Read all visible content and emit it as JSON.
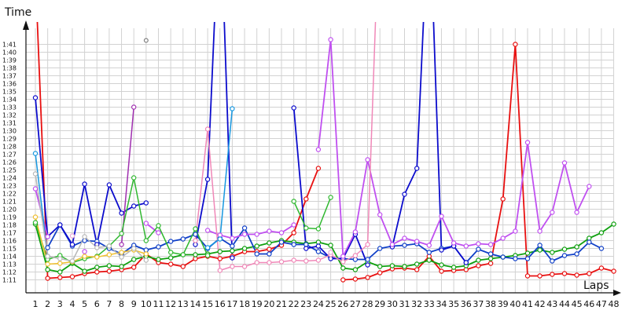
{
  "chart_data": {
    "type": "line",
    "xlabel": "Laps",
    "ylabel": "Time",
    "grid": true,
    "x": [
      1,
      2,
      3,
      4,
      5,
      6,
      7,
      8,
      9,
      10,
      11,
      12,
      13,
      14,
      15,
      16,
      17,
      18,
      19,
      20,
      21,
      22,
      23,
      24,
      25,
      26,
      27,
      28,
      29,
      30,
      31,
      32,
      33,
      34,
      35,
      36,
      37,
      38,
      39,
      40,
      41,
      42,
      43,
      44,
      45,
      46,
      47,
      48
    ],
    "xlim": [
      1,
      48
    ],
    "ylim": [
      71,
      101
    ],
    "yticks": [
      71,
      72,
      73,
      74,
      75,
      76,
      77,
      78,
      79,
      80,
      81,
      82,
      83,
      84,
      85,
      86,
      87,
      88,
      89,
      90,
      91,
      92,
      93,
      94,
      95,
      96,
      97,
      98,
      99,
      100,
      101
    ],
    "ytick_labels": [
      "1:11",
      "1:12",
      "1:13",
      "1:14",
      "1:15",
      "1:16",
      "1:17",
      "1:18",
      "1:19",
      "1:20",
      "1:21",
      "1:22",
      "1:23",
      "1:24",
      "1:25",
      "1:26",
      "1:27",
      "1:28",
      "1:29",
      "1:30",
      "1:31",
      "1:32",
      "1:33",
      "1:34",
      "1:35",
      "1:36",
      "1:37",
      "1:38",
      "1:39",
      "1:40",
      "1:41"
    ],
    "series": [
      {
        "color": "#e81010",
        "width": 1.8,
        "values": [
          110,
          71.2,
          71.3,
          71.4,
          71.8,
          72.0,
          72.1,
          72.3,
          72.6,
          74.3,
          73.2,
          73.0,
          72.7,
          73.7,
          74.0,
          73.7,
          74.0,
          74.6,
          74.6,
          74.9,
          75.4,
          77.0,
          81.3,
          85.2,
          null,
          71.0,
          71.1,
          71.3,
          71.9,
          72.4,
          72.5,
          72.3,
          74.0,
          72.1,
          72.2,
          72.3,
          72.8,
          73.1,
          81.3,
          101.0,
          71.5,
          71.5,
          71.7,
          71.8,
          71.6,
          71.8,
          72.5,
          72.1
        ]
      },
      {
        "color": "#10a010",
        "width": 1.8,
        "values": [
          78.1,
          72.3,
          72.0,
          73.1,
          72.1,
          72.6,
          72.8,
          72.7,
          73.6,
          74.0,
          73.6,
          73.8,
          74.2,
          74.2,
          74.3,
          74.6,
          74.7,
          75.0,
          75.3,
          75.7,
          76.0,
          75.8,
          75.6,
          75.8,
          75.4,
          72.5,
          72.3,
          73.3,
          72.7,
          72.8,
          72.7,
          73.0,
          73.5,
          72.9,
          72.6,
          72.8,
          73.5,
          73.7,
          73.9,
          74.1,
          74.4,
          74.8,
          74.5,
          74.9,
          75.2,
          76.3,
          77.0,
          78.1
        ]
      },
      {
        "color": "#1040c8",
        "width": 1.8,
        "values": [
          null,
          75.1,
          78.0,
          75.3,
          76.0,
          75.9,
          75.0,
          74.3,
          75.4,
          74.8,
          75.2,
          75.9,
          76.2,
          76.8,
          75.0,
          76.3,
          75.3,
          77.6,
          74.3,
          74.3,
          75.8,
          75.5,
          75.5,
          74.6,
          73.8,
          73.7,
          73.6,
          73.6,
          75.0,
          75.3,
          75.4,
          75.6,
          74.5,
          75.0,
          75.3,
          73.2,
          74.9,
          74.3,
          73.9,
          73.7,
          73.7,
          75.4,
          73.4,
          74.1,
          74.3,
          75.8,
          75.0,
          null
        ]
      },
      {
        "color": "#0c0ccc",
        "width": 1.8,
        "values": [
          94.2,
          76.5,
          78.0,
          75.5,
          83.2,
          75.5,
          83.1,
          79.5,
          80.4,
          80.8,
          null,
          null,
          null,
          75.5,
          83.8,
          120,
          73.8,
          null,
          null,
          null,
          null,
          92.9,
          75.0,
          75.3,
          73.7,
          73.7,
          76.8,
          72.9,
          null,
          75.2,
          81.9,
          85.2,
          120,
          74.8,
          75.3,
          73.2,
          null,
          null,
          null,
          null,
          null,
          null,
          null,
          null,
          null,
          null,
          null,
          null
        ]
      },
      {
        "color": "#c050f0",
        "width": 1.8,
        "values": [
          82.6,
          76.5,
          null,
          null,
          74.6,
          null,
          null,
          null,
          null,
          78.2,
          77.0,
          null,
          null,
          null,
          77.3,
          76.7,
          76.3,
          76.8,
          76.8,
          77.2,
          77.0,
          78.0,
          null,
          87.6,
          101.6,
          74.0,
          77.1,
          86.3,
          79.3,
          75.5,
          76.3,
          75.9,
          75.4,
          79.1,
          75.7,
          75.3,
          75.6,
          75.5,
          76.3,
          77.2,
          88.5,
          77.2,
          79.6,
          85.9,
          79.6,
          82.9,
          null,
          null
        ]
      },
      {
        "color": "#a030b0",
        "width": 1.5,
        "values": [
          null,
          null,
          null,
          null,
          null,
          null,
          null,
          75.5,
          93.0,
          null,
          null,
          null,
          null,
          null,
          null,
          null,
          null,
          null,
          null,
          null,
          null,
          null,
          null,
          null,
          null,
          null,
          null,
          null,
          null,
          null,
          null,
          null,
          null,
          null,
          null,
          null,
          null,
          null,
          null,
          null,
          null,
          null,
          null,
          null,
          null,
          null,
          null,
          null
        ]
      },
      {
        "color": "#f088b8",
        "width": 1.5,
        "values": [
          null,
          null,
          null,
          null,
          null,
          null,
          null,
          null,
          null,
          null,
          null,
          null,
          null,
          76.0,
          90.2,
          72.2,
          72.7,
          72.7,
          73.2,
          73.2,
          73.3,
          73.5,
          73.4,
          73.5,
          74.2,
          73.3,
          74.1,
          75.5,
          120,
          null,
          null,
          null,
          null,
          null,
          null,
          null,
          null,
          null,
          null,
          null,
          null,
          null,
          null,
          null,
          null,
          null,
          null,
          null
        ]
      },
      {
        "color": "#1898e0",
        "width": 1.5,
        "values": [
          87.1,
          74.0,
          null,
          null,
          null,
          null,
          null,
          null,
          null,
          null,
          null,
          null,
          null,
          null,
          75.1,
          76.2,
          92.8,
          null,
          null,
          null,
          null,
          null,
          null,
          null,
          null,
          null,
          null,
          null,
          null,
          null,
          null,
          null,
          null,
          null,
          null,
          null,
          null,
          null,
          null,
          null,
          null,
          null,
          null,
          null,
          null,
          null,
          null,
          null
        ]
      },
      {
        "color": "#30b830",
        "width": 1.5,
        "values": [
          78.3,
          73.6,
          74.1,
          73.2,
          73.7,
          74.0,
          75.3,
          76.9,
          84.0,
          76.0,
          77.9,
          74.5,
          74.2,
          77.5,
          74.1,
          null,
          null,
          null,
          null,
          null,
          null,
          81.0,
          77.6,
          77.5,
          81.5,
          null,
          null,
          null,
          null,
          null,
          null,
          null,
          null,
          null,
          null,
          null,
          null,
          null,
          null,
          null,
          null,
          null,
          null,
          null,
          null,
          null,
          null,
          null
        ]
      },
      {
        "color": "#f0c030",
        "width": 1.5,
        "values": [
          79.0,
          73.0,
          73.1,
          73.3,
          74.0,
          73.9,
          74.2,
          74.5,
          74.8,
          74.3,
          null,
          null,
          null,
          null,
          null,
          null,
          null,
          null,
          null,
          null,
          null,
          null,
          null,
          null,
          null,
          null,
          null,
          null,
          null,
          null,
          null,
          null,
          null,
          null,
          null,
          null,
          null,
          null,
          null,
          null,
          null,
          null,
          null,
          null,
          null,
          null,
          null,
          null
        ]
      },
      {
        "color": "#b8b8b8",
        "width": 1.5,
        "values": [
          84.5,
          74.0,
          73.7,
          73.4,
          76.5,
          75.1,
          75.3,
          73.9,
          75.0,
          73.5,
          null,
          null,
          null,
          null,
          null,
          null,
          null,
          null,
          null,
          null,
          null,
          null,
          null,
          null,
          null,
          null,
          null,
          null,
          null,
          null,
          null,
          null,
          null,
          null,
          null,
          null,
          null,
          null,
          null,
          null,
          null,
          null,
          null,
          null,
          null,
          null,
          null,
          null
        ]
      },
      {
        "color": "#e8a8d8",
        "width": 1.5,
        "values": [
          null,
          null,
          null,
          76.6,
          null,
          null,
          null,
          null,
          null,
          null,
          null,
          null,
          null,
          null,
          null,
          null,
          null,
          null,
          null,
          null,
          null,
          null,
          null,
          null,
          74.5,
          null,
          null,
          null,
          null,
          null,
          null,
          null,
          null,
          null,
          null,
          null,
          null,
          null,
          null,
          null,
          null,
          null,
          null,
          null,
          null,
          null,
          null,
          null
        ]
      },
      {
        "color": "#808080",
        "width": 1.5,
        "values": [
          null,
          null,
          null,
          null,
          null,
          null,
          null,
          null,
          null,
          null,
          null,
          null,
          null,
          null,
          null,
          null,
          null,
          null,
          null,
          null,
          null,
          null,
          null,
          null,
          null,
          null,
          null,
          null,
          null,
          null,
          null,
          null,
          null,
          null,
          null,
          null,
          null,
          null,
          null,
          null,
          null,
          null,
          null,
          null,
          null,
          null,
          null,
          null
        ]
      }
    ],
    "off_chart": [
      {
        "color": "#808080",
        "x": 10,
        "y": 101.5
      }
    ]
  }
}
